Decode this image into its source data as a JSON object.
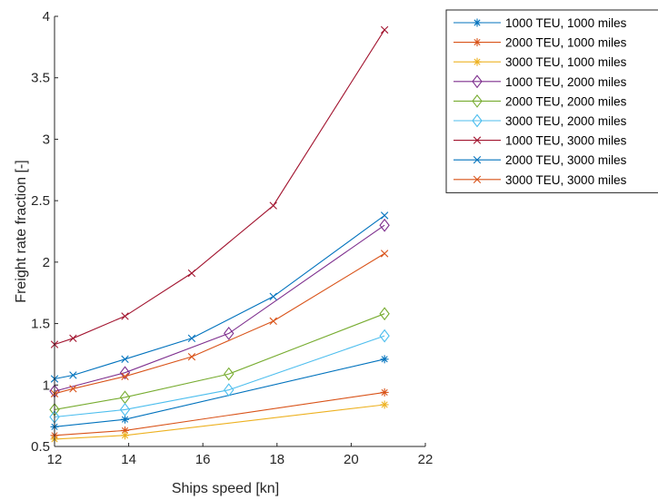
{
  "chart_data": {
    "type": "line",
    "title": "",
    "xlabel": "Ships speed [kn]",
    "ylabel": "Freight rate fraction [-]",
    "xlim": [
      12,
      22
    ],
    "ylim": [
      0.5,
      4
    ],
    "xticks": [
      12,
      14,
      16,
      18,
      20,
      22
    ],
    "xtick_labels": [
      "12",
      "14",
      "16",
      "18",
      "20",
      "22"
    ],
    "yticks": [
      0.5,
      1,
      1.5,
      2,
      2.5,
      3,
      3.5,
      4
    ],
    "ytick_labels": [
      "0.5",
      "1",
      "1.5",
      "2",
      "2.5",
      "3",
      "3.5",
      "4"
    ],
    "grid": false,
    "legend_position": "outside-top-right",
    "series": [
      {
        "name": "1000 TEU, 1000 miles",
        "color": "#0072BD",
        "marker": "asterisk",
        "x": [
          12,
          13.9,
          20.9
        ],
        "y": [
          0.66,
          0.72,
          1.21
        ]
      },
      {
        "name": "2000 TEU, 1000 miles",
        "color": "#D95319",
        "marker": "asterisk",
        "x": [
          12,
          13.9,
          20.9
        ],
        "y": [
          0.59,
          0.63,
          0.94
        ]
      },
      {
        "name": "3000 TEU, 1000 miles",
        "color": "#EDB120",
        "marker": "asterisk",
        "x": [
          12,
          13.9,
          20.9
        ],
        "y": [
          0.56,
          0.59,
          0.84
        ]
      },
      {
        "name": "1000 TEU, 2000 miles",
        "color": "#7E2F8E",
        "marker": "diamond",
        "x": [
          12,
          13.9,
          16.7,
          20.9
        ],
        "y": [
          0.95,
          1.1,
          1.42,
          2.3
        ]
      },
      {
        "name": "2000 TEU, 2000 miles",
        "color": "#77AC30",
        "marker": "diamond",
        "x": [
          12,
          13.9,
          16.7,
          20.9
        ],
        "y": [
          0.8,
          0.9,
          1.09,
          1.58
        ]
      },
      {
        "name": "3000 TEU, 2000 miles",
        "color": "#4DBEEE",
        "marker": "diamond",
        "x": [
          12,
          13.9,
          16.7,
          20.9
        ],
        "y": [
          0.74,
          0.8,
          0.96,
          1.4
        ]
      },
      {
        "name": "1000 TEU, 3000 miles",
        "color": "#A2142F",
        "marker": "x",
        "x": [
          12,
          12.5,
          13.9,
          15.7,
          17.9,
          20.9
        ],
        "y": [
          1.33,
          1.38,
          1.56,
          1.91,
          2.46,
          3.89
        ]
      },
      {
        "name": "2000 TEU, 3000 miles",
        "color": "#0072BD",
        "marker": "x",
        "x": [
          12,
          12.5,
          13.9,
          15.7,
          17.9,
          20.9
        ],
        "y": [
          1.05,
          1.08,
          1.21,
          1.38,
          1.72,
          2.38
        ]
      },
      {
        "name": "3000 TEU, 3000 miles",
        "color": "#D95319",
        "marker": "x",
        "x": [
          12,
          12.5,
          13.9,
          15.7,
          17.9,
          20.9
        ],
        "y": [
          0.93,
          0.97,
          1.07,
          1.23,
          1.52,
          2.07
        ]
      }
    ]
  }
}
